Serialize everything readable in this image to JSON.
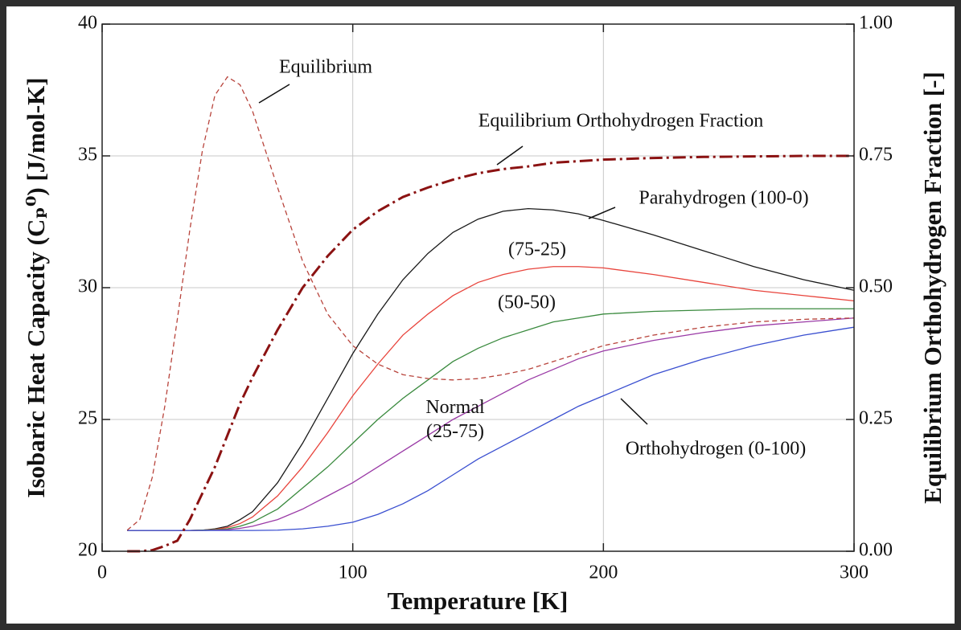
{
  "chart_data": {
    "type": "line",
    "xlabel": "Temperature  [K]",
    "ylabel": "Isobaric Heat Capacity (Cₚ⁰) [J/mol-K]",
    "y2label": "Equilibrium Orthohydrogen Fraction [-]",
    "x": [
      10,
      15,
      20,
      25,
      30,
      35,
      40,
      45,
      50,
      55,
      60,
      70,
      80,
      90,
      100,
      110,
      120,
      130,
      140,
      150,
      160,
      170,
      180,
      190,
      200,
      220,
      240,
      260,
      280,
      300
    ],
    "xlim": [
      0,
      300
    ],
    "xticks": [
      0,
      100,
      200,
      300
    ],
    "ylim": [
      20,
      40
    ],
    "yticks": [
      20,
      25,
      30,
      35,
      40
    ],
    "y2lim": [
      0,
      1
    ],
    "y2ticks": [
      {
        "value": 0,
        "label": "0.00"
      },
      {
        "value": 0.25,
        "label": "0.25"
      },
      {
        "value": 0.5,
        "label": "0.50"
      },
      {
        "value": 0.75,
        "label": "0.75"
      },
      {
        "value": 1,
        "label": "1.00"
      }
    ],
    "grid": true,
    "series": [
      {
        "name": "Parahydrogen (100-0)",
        "color": "#1a1a1a",
        "style": "solid",
        "values": [
          20.79,
          20.79,
          20.79,
          20.79,
          20.79,
          20.79,
          20.8,
          20.85,
          20.95,
          21.2,
          21.5,
          22.6,
          24.1,
          25.8,
          27.5,
          29.0,
          30.3,
          31.3,
          32.1,
          32.6,
          32.9,
          33.0,
          32.95,
          32.8,
          32.55,
          32.0,
          31.4,
          30.8,
          30.3,
          29.9
        ]
      },
      {
        "name": "(75-25)",
        "color": "#e8443c",
        "style": "solid",
        "values": [
          20.79,
          20.79,
          20.79,
          20.79,
          20.79,
          20.79,
          20.8,
          20.83,
          20.9,
          21.05,
          21.3,
          22.1,
          23.2,
          24.5,
          25.9,
          27.1,
          28.2,
          29.0,
          29.7,
          30.2,
          30.5,
          30.7,
          30.8,
          30.8,
          30.75,
          30.5,
          30.2,
          29.9,
          29.7,
          29.5
        ]
      },
      {
        "name": "(50-50)",
        "color": "#3a8a3e",
        "style": "solid",
        "values": [
          20.79,
          20.79,
          20.79,
          20.79,
          20.79,
          20.79,
          20.8,
          20.82,
          20.85,
          20.95,
          21.1,
          21.6,
          22.4,
          23.2,
          24.1,
          25.0,
          25.8,
          26.5,
          27.2,
          27.7,
          28.1,
          28.4,
          28.7,
          28.85,
          29.0,
          29.1,
          29.15,
          29.2,
          29.2,
          29.2
        ]
      },
      {
        "name": "Normal (25-75)",
        "color": "#9a3aa6",
        "style": "solid",
        "values": [
          20.79,
          20.79,
          20.79,
          20.79,
          20.79,
          20.79,
          20.79,
          20.8,
          20.82,
          20.87,
          20.95,
          21.2,
          21.6,
          22.1,
          22.6,
          23.2,
          23.8,
          24.4,
          25.0,
          25.5,
          26.0,
          26.5,
          26.9,
          27.3,
          27.6,
          28.0,
          28.3,
          28.55,
          28.7,
          28.85
        ]
      },
      {
        "name": "Orthohydrogen (0-100)",
        "color": "#3a4fd0",
        "style": "solid",
        "values": [
          20.79,
          20.79,
          20.79,
          20.79,
          20.79,
          20.79,
          20.79,
          20.79,
          20.79,
          20.79,
          20.79,
          20.8,
          20.85,
          20.95,
          21.1,
          21.4,
          21.8,
          22.3,
          22.9,
          23.5,
          24.0,
          24.5,
          25.0,
          25.5,
          25.9,
          26.7,
          27.3,
          27.8,
          28.2,
          28.5
        ]
      },
      {
        "name": "Equilibrium",
        "color": "#b8443c",
        "style": "dashed",
        "values": [
          20.8,
          21.2,
          22.8,
          25.5,
          28.8,
          32.2,
          35.2,
          37.3,
          38.0,
          37.7,
          36.7,
          33.8,
          31.0,
          29.0,
          27.8,
          27.1,
          26.7,
          26.55,
          26.5,
          26.55,
          26.7,
          26.9,
          27.2,
          27.5,
          27.8,
          28.2,
          28.5,
          28.7,
          28.8,
          28.85
        ]
      },
      {
        "name": "Equilibrium Orthohydrogen Fraction",
        "color": "#8b1212",
        "style": "dashdot",
        "axis": "y2",
        "values": [
          0,
          0,
          0.002,
          0.01,
          0.02,
          0.06,
          0.11,
          0.16,
          0.22,
          0.28,
          0.33,
          0.42,
          0.5,
          0.56,
          0.61,
          0.645,
          0.672,
          0.69,
          0.705,
          0.717,
          0.725,
          0.73,
          0.737,
          0.74,
          0.743,
          0.746,
          0.748,
          0.749,
          0.75,
          0.75
        ]
      }
    ]
  }
}
